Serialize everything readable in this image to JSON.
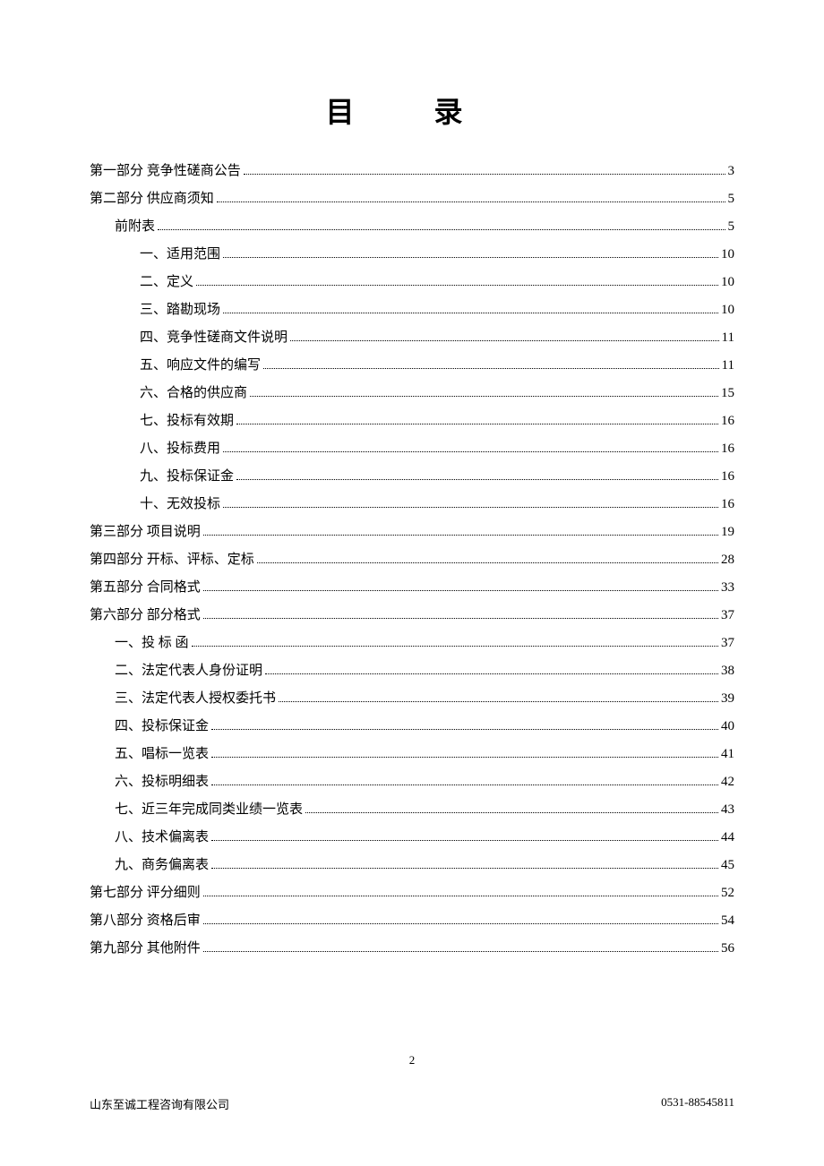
{
  "title": "目 录",
  "toc": [
    {
      "label": "第一部分 竞争性磋商公告",
      "page": "3",
      "indent": 0
    },
    {
      "label": "第二部分  供应商须知",
      "page": "5",
      "indent": 0
    },
    {
      "label": "前附表",
      "page": "5",
      "indent": 1
    },
    {
      "label": "一、适用范围",
      "page": "10",
      "indent": 2
    },
    {
      "label": "二、定义",
      "page": "10",
      "indent": 2
    },
    {
      "label": "三、踏勘现场",
      "page": "10",
      "indent": 2
    },
    {
      "label": "四、竞争性磋商文件说明",
      "page": "11",
      "indent": 2
    },
    {
      "label": "五、响应文件的编写",
      "page": "11",
      "indent": 2
    },
    {
      "label": "六、合格的供应商",
      "page": "15",
      "indent": 2
    },
    {
      "label": "七、投标有效期",
      "page": "16",
      "indent": 2
    },
    {
      "label": "八、投标费用",
      "page": "16",
      "indent": 2
    },
    {
      "label": "九、投标保证金",
      "page": "16",
      "indent": 2
    },
    {
      "label": "十、无效投标",
      "page": "16",
      "indent": 2
    },
    {
      "label": "第三部分  项目说明",
      "page": "19",
      "indent": 0
    },
    {
      "label": "第四部分  开标、评标、定标",
      "page": "28",
      "indent": 0
    },
    {
      "label": "第五部分  合同格式",
      "page": "33",
      "indent": 0
    },
    {
      "label": "第六部分   部分格式",
      "page": "37",
      "indent": 0
    },
    {
      "label": "一、投  标  函",
      "page": "37",
      "indent": 1
    },
    {
      "label": "二、法定代表人身份证明",
      "page": "38",
      "indent": 1
    },
    {
      "label": "三、法定代表人授权委托书",
      "page": "39",
      "indent": 1
    },
    {
      "label": "四、投标保证金",
      "page": "40",
      "indent": 1
    },
    {
      "label": "五、唱标一览表",
      "page": "41",
      "indent": 1
    },
    {
      "label": "六、投标明细表",
      "page": "42",
      "indent": 1
    },
    {
      "label": "七、近三年完成同类业绩一览表",
      "page": "43",
      "indent": 1
    },
    {
      "label": "八、技术偏离表",
      "page": "44",
      "indent": 1
    },
    {
      "label": "九、商务偏离表",
      "page": "45",
      "indent": 1
    },
    {
      "label": "第七部分 评分细则",
      "page": "52",
      "indent": 0
    },
    {
      "label": "第八部分  资格后审",
      "page": "54",
      "indent": 0
    },
    {
      "label": "第九部分 其他附件",
      "page": "56",
      "indent": 0
    }
  ],
  "page_number": "2",
  "footer_left": "山东至诚工程咨询有限公司",
  "footer_right": "0531-88545811"
}
